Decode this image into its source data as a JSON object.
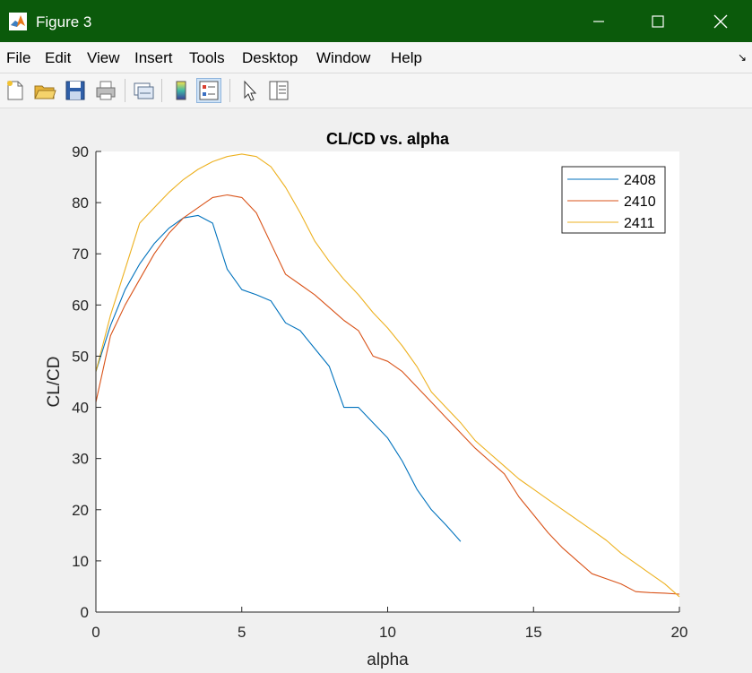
{
  "window": {
    "title": "Figure 3",
    "colors": {
      "titlebar": "#0b5a0b"
    }
  },
  "menubar": {
    "items": [
      "File",
      "Edit",
      "View",
      "Insert",
      "Tools",
      "Desktop",
      "Window",
      "Help"
    ]
  },
  "toolbar": {
    "icons": [
      "new-figure-icon",
      "open-file-icon",
      "save-icon",
      "print-icon",
      "link-plot-icon",
      "insert-colorbar-icon",
      "insert-legend-icon",
      "edit-plot-icon",
      "property-inspector-icon"
    ]
  },
  "chart_data": {
    "type": "line",
    "title": "CL/CD vs. alpha",
    "xlabel": "alpha",
    "ylabel": "CL/CD",
    "xlim": [
      0,
      20
    ],
    "ylim": [
      0,
      90
    ],
    "xticks": [
      0,
      5,
      10,
      15,
      20
    ],
    "yticks": [
      0,
      10,
      20,
      30,
      40,
      50,
      60,
      70,
      80,
      90
    ],
    "grid": false,
    "legend_position": "top-right",
    "series": [
      {
        "name": "2408",
        "color": "#0072bd",
        "x": [
          0,
          0.5,
          1,
          1.5,
          2,
          2.5,
          3,
          3.5,
          4,
          4.5,
          5,
          5.5,
          6,
          6.5,
          7,
          7.5,
          8,
          8.5,
          9,
          9.5,
          10,
          10.5,
          11,
          11.5,
          12,
          12.5
        ],
        "y": [
          47,
          56,
          63,
          68,
          72,
          75,
          77,
          77.5,
          76,
          67,
          63,
          62,
          60.8,
          56.5,
          55,
          51.5,
          48,
          40,
          40,
          37,
          34,
          29.5,
          24,
          20,
          17,
          13.8
        ]
      },
      {
        "name": "2410",
        "color": "#d95319",
        "x": [
          0,
          0.5,
          1,
          1.5,
          2,
          2.5,
          3,
          3.5,
          4,
          4.5,
          5,
          5.5,
          6,
          6.5,
          7,
          7.5,
          8,
          8.5,
          9,
          9.5,
          10,
          10.5,
          11,
          11.5,
          12,
          12.5,
          13,
          13.5,
          14,
          14.5,
          15,
          15.5,
          16,
          16.5,
          17,
          17.5,
          18,
          18.5,
          19,
          19.5,
          20
        ],
        "y": [
          41,
          54,
          60,
          65,
          70,
          74,
          77,
          79,
          81,
          81.5,
          81,
          78,
          72,
          66,
          64,
          62,
          59.5,
          57,
          55,
          50,
          49,
          47,
          44,
          41,
          38,
          35,
          32,
          29.5,
          27,
          22.5,
          19,
          15.5,
          12.5,
          10,
          7.5,
          6.5,
          5.5,
          4,
          3.8,
          3.7,
          3.5
        ]
      },
      {
        "name": "2411",
        "color": "#edb120",
        "x": [
          0,
          0.5,
          1,
          1.5,
          2,
          2.5,
          3,
          3.5,
          4,
          4.5,
          5,
          5.5,
          6,
          6.5,
          7,
          7.5,
          8,
          8.5,
          9,
          9.5,
          10,
          10.5,
          11,
          11.5,
          12,
          12.5,
          13,
          13.5,
          14,
          14.5,
          15,
          15.5,
          16,
          16.5,
          17,
          17.5,
          18,
          18.5,
          19,
          19.5,
          20
        ],
        "y": [
          47,
          58,
          67,
          76,
          79,
          82,
          84.5,
          86.5,
          88,
          89,
          89.5,
          89,
          87,
          83,
          78,
          72.5,
          68.5,
          65,
          62,
          58.5,
          55.5,
          52,
          48,
          43,
          40,
          37,
          33.5,
          31,
          28.5,
          26,
          24,
          22,
          20,
          18,
          16,
          14,
          11.5,
          9.5,
          7.5,
          5.5,
          3
        ]
      }
    ]
  }
}
